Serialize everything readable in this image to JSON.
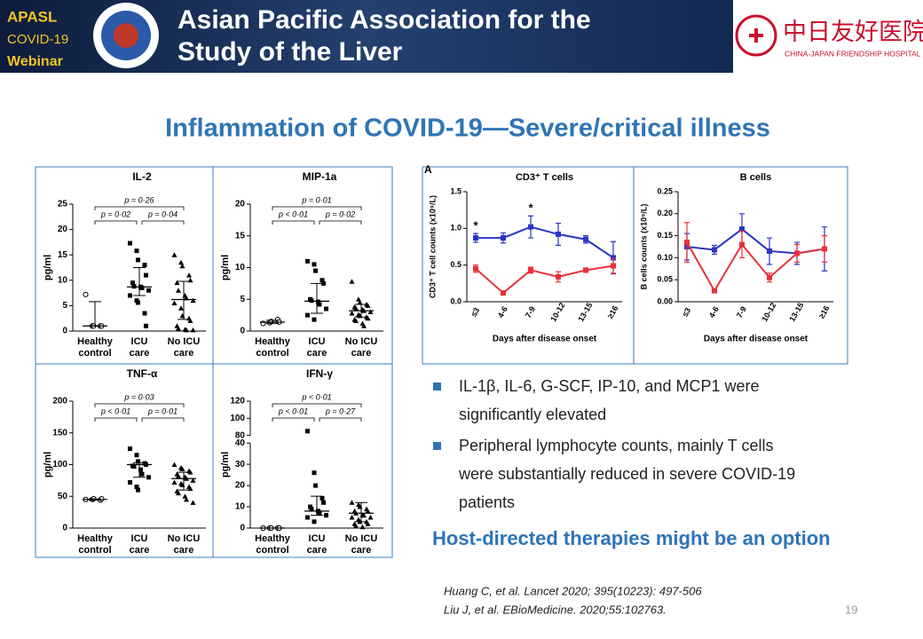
{
  "header": {
    "badge": [
      "APASL",
      "COVID-19",
      "Webinar"
    ],
    "title_lines": [
      "Asian Pacific Association for the",
      "Study of the Liver"
    ],
    "hospital": "中日友好医院",
    "hospital_en": "CHINA-JAPAN FRIENDSHIP HOSPITAL"
  },
  "title": "Inflammation of COVID-19—Severe/critical illness",
  "chart_data": [
    {
      "type": "strip",
      "title": "IL-2",
      "ylabel": "pg/ml",
      "categories": [
        [
          "Healthy",
          "control"
        ],
        [
          "ICU",
          "care"
        ],
        [
          "No ICU",
          "care"
        ]
      ],
      "ylim": [
        0,
        25
      ],
      "yticks": [
        0,
        5,
        10,
        15,
        20,
        25
      ],
      "p_values": [
        "p = 0·26",
        "p = 0·02",
        "p = 0·04"
      ],
      "points": [
        [
          7.2,
          1,
          1,
          1,
          1
        ],
        [
          17.3,
          15.8,
          14,
          13,
          11,
          9.5,
          8.8,
          8.7,
          8.5,
          8,
          7,
          6,
          5.6,
          3.5,
          1
        ],
        [
          15,
          13.5,
          12.8,
          11,
          10,
          9.5,
          8,
          7,
          6.5,
          6,
          5.5,
          4.5,
          3,
          2.5,
          2,
          1,
          0.5,
          0.3,
          0.2,
          0.2
        ]
      ],
      "medians": [
        1,
        8.7,
        6.2
      ],
      "iqr": [
        [
          1,
          5.8
        ],
        [
          7,
          12.5
        ],
        [
          2.3,
          9.8
        ]
      ]
    },
    {
      "type": "strip",
      "title": "MIP-1a",
      "ylabel": "pg/ml",
      "categories": [
        [
          "Healthy",
          "control"
        ],
        [
          "ICU",
          "care"
        ],
        [
          "No ICU",
          "care"
        ]
      ],
      "ylim": [
        0,
        20
      ],
      "yticks": [
        0,
        5,
        10,
        15,
        20
      ],
      "p_values": [
        "p = 0·01",
        "p < 0·01",
        "p = 0·02"
      ],
      "points": [
        [
          1.2,
          1.3,
          1.5,
          1.8,
          1.4
        ],
        [
          11,
          10.5,
          9.5,
          8,
          7.5,
          5,
          4.8,
          4.6,
          4.2,
          3.5,
          2.5,
          1.8
        ],
        [
          7.8,
          5,
          4.5,
          4.2,
          4,
          3.8,
          3.6,
          3.4,
          3.2,
          3,
          2.8,
          2.6,
          2.4,
          2.2,
          2,
          1.8,
          1.6,
          1.2,
          0.8
        ]
      ],
      "medians": [
        1.4,
        4.7,
        3.2
      ],
      "iqr": [
        [
          1.2,
          1.7
        ],
        [
          2.8,
          7.5
        ],
        [
          2.2,
          4.2
        ]
      ]
    },
    {
      "type": "strip",
      "title": "TNF-α",
      "ylabel": "pg/ml",
      "categories": [
        [
          "Healthy",
          "control"
        ],
        [
          "ICU",
          "care"
        ],
        [
          "No ICU",
          "care"
        ]
      ],
      "ylim": [
        0,
        200
      ],
      "yticks": [
        0,
        50,
        100,
        150,
        200
      ],
      "p_values": [
        "p = 0·03",
        "p < 0·01",
        "p = 0·01"
      ],
      "points": [
        [
          45,
          45,
          46,
          44,
          46
        ],
        [
          125,
          115,
          105,
          102,
          100,
          98,
          97,
          92,
          85,
          80,
          72,
          65,
          60
        ],
        [
          100,
          95,
          93,
          90,
          88,
          85,
          82,
          80,
          78,
          75,
          72,
          70,
          68,
          65,
          62,
          58,
          55,
          50,
          45,
          40
        ]
      ],
      "medians": [
        45,
        100,
        78
      ],
      "iqr": [
        [
          44,
          46
        ],
        [
          80,
          103
        ],
        [
          60,
          88
        ]
      ]
    },
    {
      "type": "strip",
      "title": "IFN-γ",
      "ylabel": "pg/ml",
      "categories": [
        [
          "Healthy",
          "control"
        ],
        [
          "ICU",
          "care"
        ],
        [
          "No ICU",
          "care"
        ]
      ],
      "ylim": [
        0,
        120
      ],
      "yticks": [
        0,
        10,
        20,
        30,
        40,
        80,
        100,
        120
      ],
      "axis_break": [
        40,
        80
      ],
      "p_values": [
        "p < 0·01",
        "p < 0·01",
        "p = 0·27"
      ],
      "points": [
        [
          0,
          0,
          0,
          0,
          0
        ],
        [
          85,
          26,
          20,
          14,
          12,
          10,
          9,
          8,
          7,
          6,
          5,
          3
        ],
        [
          12,
          11,
          10,
          9,
          8,
          8,
          7,
          6,
          6,
          5,
          5,
          4,
          3,
          3,
          2,
          2,
          1,
          0.5
        ]
      ],
      "medians": [
        0,
        8,
        7
      ],
      "iqr": [
        [
          0,
          0
        ],
        [
          6,
          15
        ],
        [
          3,
          12
        ]
      ]
    },
    {
      "type": "line",
      "panel": "A",
      "title": "CD3⁺ T cells",
      "ylabel": "CD3⁺ T cell counts (x10⁹/L)",
      "xlabel": "Days after disease onset",
      "categories": [
        "≤3",
        "4-6",
        "7-9",
        "10-12",
        "13-15",
        "≥16"
      ],
      "ylim": [
        0,
        1.5
      ],
      "yticks": [
        {
          "value": 0,
          "label": "0.0"
        },
        {
          "value": 0.5,
          "label": "0.5"
        },
        {
          "value": 1,
          "label": "1.0"
        },
        {
          "value": 1.5,
          "label": "1.5"
        }
      ],
      "asterisks": [
        "*",
        null,
        "*",
        null,
        null,
        null
      ],
      "series": [
        {
          "color": "#2b35c4",
          "values": [
            0.87,
            0.87,
            1.02,
            0.92,
            0.85,
            0.6
          ],
          "errors": [
            0.06,
            0.07,
            0.15,
            0.15,
            0.05,
            0.22
          ]
        },
        {
          "color": "#e8313a",
          "values": [
            0.45,
            0.12,
            0.43,
            0.34,
            0.43,
            0.49
          ],
          "errors": [
            0.05,
            0.01,
            0.04,
            0.07,
            0.03,
            0.1
          ]
        }
      ]
    },
    {
      "type": "line",
      "title": "B cells",
      "ylabel": "B cells counts (x10⁹/L)",
      "xlabel": "Days after disease onset",
      "categories": [
        "≤3",
        "4-6",
        "7-9",
        "10-12",
        "13-15",
        "≥16"
      ],
      "ylim": [
        0,
        0.25
      ],
      "yticks": [
        {
          "value": 0,
          "label": "0.00"
        },
        {
          "value": 0.05,
          "label": "0.05"
        },
        {
          "value": 0.1,
          "label": "0.10"
        },
        {
          "value": 0.15,
          "label": "0.15"
        },
        {
          "value": 0.2,
          "label": "0.20"
        },
        {
          "value": 0.25,
          "label": "0.25"
        }
      ],
      "series": [
        {
          "color": "#2b35c4",
          "values": [
            0.125,
            0.118,
            0.165,
            0.115,
            0.11,
            0.12
          ],
          "errors": [
            0.03,
            0.01,
            0.035,
            0.03,
            0.025,
            0.05
          ]
        },
        {
          "color": "#e8313a",
          "values": [
            0.135,
            0.025,
            0.13,
            0.055,
            0.11,
            0.12
          ],
          "errors": [
            0.045,
            0.002,
            0.03,
            0.01,
            0.02,
            0.03
          ]
        }
      ]
    }
  ],
  "bullets": [
    [
      "IL-1β, IL-6, G-SCF, IP-10, and MCP1 were",
      "significantly elevated"
    ],
    [
      "Peripheral lymphocyte counts, mainly T cells",
      "were substantially reduced in  severe COVID-19",
      "patients"
    ]
  ],
  "conclusion": "Host-directed therapies might be an option",
  "references": [
    "Huang C, et al. Lancet  2020; 395(10223): 497-506",
    "Liu J, et al. EBioMedicine. 2020;55:102763."
  ],
  "page_number": "19"
}
